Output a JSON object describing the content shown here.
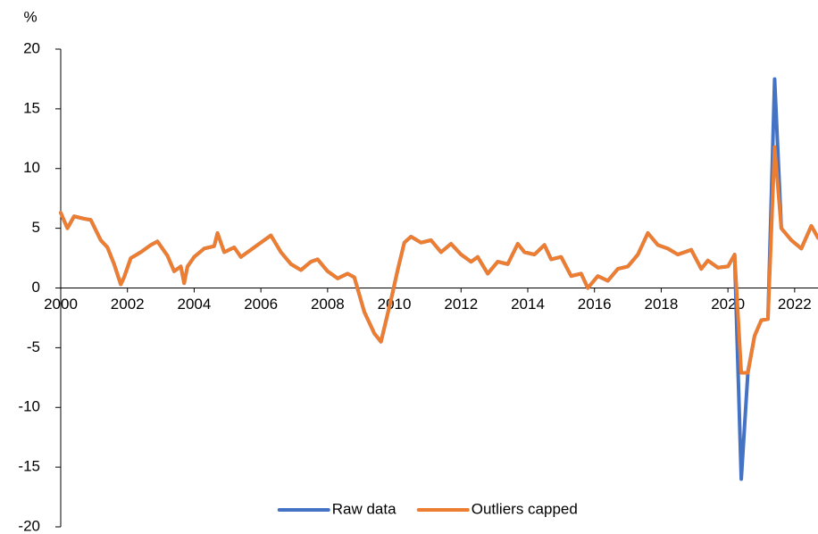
{
  "chart_data": {
    "type": "line",
    "y_unit_label": "%",
    "x": [
      2000.0,
      2000.2,
      2000.4,
      2000.7,
      2000.9,
      2001.2,
      2001.4,
      2001.6,
      2001.8,
      2001.9,
      2002.1,
      2002.4,
      2002.7,
      2002.9,
      2003.2,
      2003.4,
      2003.6,
      2003.7,
      2003.8,
      2004.0,
      2004.3,
      2004.6,
      2004.7,
      2004.9,
      2005.2,
      2005.4,
      2005.7,
      2006.0,
      2006.3,
      2006.6,
      2006.9,
      2007.2,
      2007.5,
      2007.7,
      2008.0,
      2008.3,
      2008.6,
      2008.8,
      2009.1,
      2009.4,
      2009.6,
      2009.9,
      2010.1,
      2010.3,
      2010.5,
      2010.8,
      2011.1,
      2011.4,
      2011.7,
      2012.0,
      2012.3,
      2012.5,
      2012.8,
      2013.1,
      2013.4,
      2013.7,
      2013.9,
      2014.2,
      2014.5,
      2014.7,
      2015.0,
      2015.3,
      2015.6,
      2015.8,
      2016.1,
      2016.4,
      2016.7,
      2017.0,
      2017.3,
      2017.6,
      2017.9,
      2018.2,
      2018.5,
      2018.9,
      2019.2,
      2019.4,
      2019.7,
      2020.0,
      2020.2,
      2020.4,
      2020.6,
      2020.8,
      2021.0,
      2021.2,
      2021.4,
      2021.6,
      2021.9,
      2022.2,
      2022.5,
      2022.7
    ],
    "series": [
      {
        "name": "Raw data",
        "color": "#4472c4",
        "values": [
          6.3,
          5.0,
          6.0,
          5.8,
          5.7,
          4.0,
          3.4,
          2.0,
          0.3,
          0.9,
          2.5,
          3.0,
          3.6,
          3.9,
          2.7,
          1.4,
          1.8,
          0.4,
          1.8,
          2.6,
          3.3,
          3.5,
          4.6,
          3.0,
          3.4,
          2.6,
          3.2,
          3.8,
          4.4,
          3.0,
          2.0,
          1.5,
          2.2,
          2.4,
          1.4,
          0.8,
          1.2,
          0.9,
          -2.0,
          -3.8,
          -4.5,
          -1.0,
          1.5,
          3.8,
          4.3,
          3.8,
          4.0,
          3.0,
          3.7,
          2.8,
          2.2,
          2.6,
          1.2,
          2.2,
          2.0,
          3.7,
          3.0,
          2.8,
          3.6,
          2.4,
          2.6,
          1.0,
          1.2,
          0.0,
          1.0,
          0.6,
          1.6,
          1.8,
          2.8,
          4.6,
          3.6,
          3.3,
          2.8,
          3.2,
          1.6,
          2.3,
          1.7,
          1.8,
          2.8,
          -16.0,
          -7.0,
          -4.0,
          -2.7,
          -2.6,
          17.5,
          5.0,
          4.0,
          3.3,
          5.2,
          4.2
        ]
      },
      {
        "name": "Outliers capped",
        "color": "#ed7d31",
        "values": [
          6.3,
          5.0,
          6.0,
          5.8,
          5.7,
          4.0,
          3.4,
          2.0,
          0.3,
          0.9,
          2.5,
          3.0,
          3.6,
          3.9,
          2.7,
          1.4,
          1.8,
          0.4,
          1.8,
          2.6,
          3.3,
          3.5,
          4.6,
          3.0,
          3.4,
          2.6,
          3.2,
          3.8,
          4.4,
          3.0,
          2.0,
          1.5,
          2.2,
          2.4,
          1.4,
          0.8,
          1.2,
          0.9,
          -2.0,
          -3.8,
          -4.5,
          -1.0,
          1.5,
          3.8,
          4.3,
          3.8,
          4.0,
          3.0,
          3.7,
          2.8,
          2.2,
          2.6,
          1.2,
          2.2,
          2.0,
          3.7,
          3.0,
          2.8,
          3.6,
          2.4,
          2.6,
          1.0,
          1.2,
          0.0,
          1.0,
          0.6,
          1.6,
          1.8,
          2.8,
          4.6,
          3.6,
          3.3,
          2.8,
          3.2,
          1.6,
          2.3,
          1.7,
          1.8,
          2.8,
          -7.1,
          -7.1,
          -4.0,
          -2.7,
          -2.6,
          11.8,
          5.0,
          4.0,
          3.3,
          5.2,
          4.2
        ]
      }
    ],
    "xlim": [
      2000,
      2022.7
    ],
    "xticks": [
      2000,
      2002,
      2004,
      2006,
      2008,
      2010,
      2012,
      2014,
      2016,
      2018,
      2020,
      2022
    ],
    "ylim": [
      -20,
      20
    ],
    "yticks": [
      -20,
      -15,
      -10,
      -5,
      0,
      5,
      10,
      15,
      20
    ],
    "legend": "bottom"
  }
}
